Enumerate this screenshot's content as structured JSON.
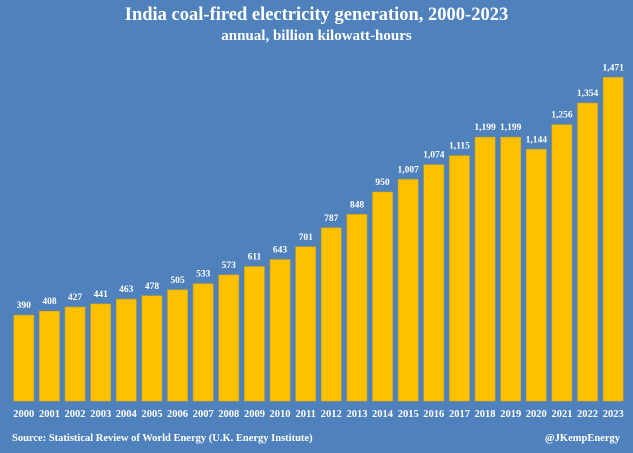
{
  "chart_data": {
    "type": "bar",
    "title": "India coal-fired electricity generation, 2000-2023",
    "subtitle": "annual, billion kilowatt-hours",
    "xlabel": "",
    "ylabel": "",
    "categories": [
      "2000",
      "2001",
      "2002",
      "2003",
      "2004",
      "2005",
      "2006",
      "2007",
      "2008",
      "2009",
      "2010",
      "2011",
      "2012",
      "2013",
      "2014",
      "2015",
      "2016",
      "2017",
      "2018",
      "2019",
      "2020",
      "2021",
      "2022",
      "2023"
    ],
    "values": [
      390,
      408,
      427,
      441,
      463,
      478,
      505,
      533,
      573,
      611,
      643,
      701,
      787,
      848,
      950,
      1007,
      1074,
      1115,
      1199,
      1199,
      1144,
      1256,
      1354,
      1471
    ],
    "data_labels": [
      "390",
      "408",
      "427",
      "441",
      "463",
      "478",
      "505",
      "533",
      "573",
      "611",
      "643",
      "701",
      "787",
      "848",
      "950",
      "1,007",
      "1,074",
      "1,115",
      "1,199",
      "1,199",
      "1,144",
      "1,256",
      "1,354",
      "1,471"
    ],
    "ylim": [
      0,
      1500
    ],
    "grid": false,
    "legend": "none",
    "colors": {
      "background": "#4f81bd",
      "bar": "#ffc000",
      "bar_edge": "#e0a800",
      "text": "#ffffff"
    }
  },
  "footer": {
    "source": "Source: Statistical Review of World Energy (U.K. Energy Institute)",
    "handle": "@JKempEnergy"
  }
}
